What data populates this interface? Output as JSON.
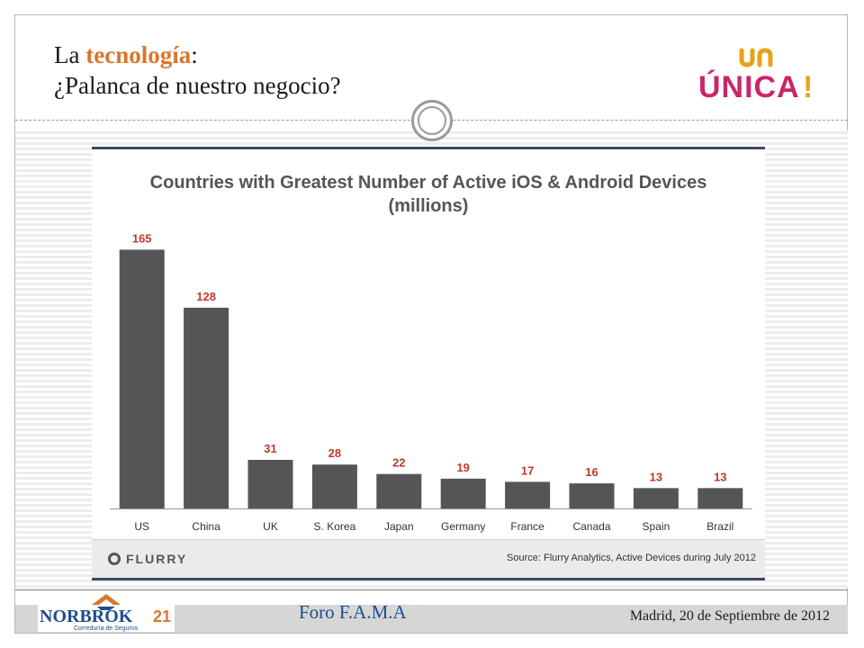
{
  "slide": {
    "title_prefix": "La ",
    "title_accent": "tecnología",
    "title_colon": ":",
    "title_line2": "¿Palanca de nuestro negocio?",
    "accent_color": "#d8782a"
  },
  "logos": {
    "unica": "ÚNICA!",
    "norbrok_name": "NORBROK",
    "norbrok_number": "21",
    "norbrok_tagline": "Correduría de Seguros"
  },
  "footer": {
    "event": "Foro F.A.M.A",
    "date": "Madrid, 20 de Septiembre de 2012"
  },
  "chart_data": {
    "type": "bar",
    "title": "Countries with Greatest Number of Active iOS & Android Devices",
    "subtitle": "(millions)",
    "categories": [
      "US",
      "China",
      "UK",
      "S. Korea",
      "Japan",
      "Germany",
      "France",
      "Canada",
      "Spain",
      "Brazil"
    ],
    "values": [
      165,
      128,
      31,
      28,
      22,
      19,
      17,
      16,
      13,
      13
    ],
    "ylim": [
      0,
      175
    ],
    "bar_color": "#555555",
    "label_color": "#c0392b",
    "source": "Source: Flurry Analytics, Active Devices during July 2012",
    "brand": "FLURRY"
  }
}
